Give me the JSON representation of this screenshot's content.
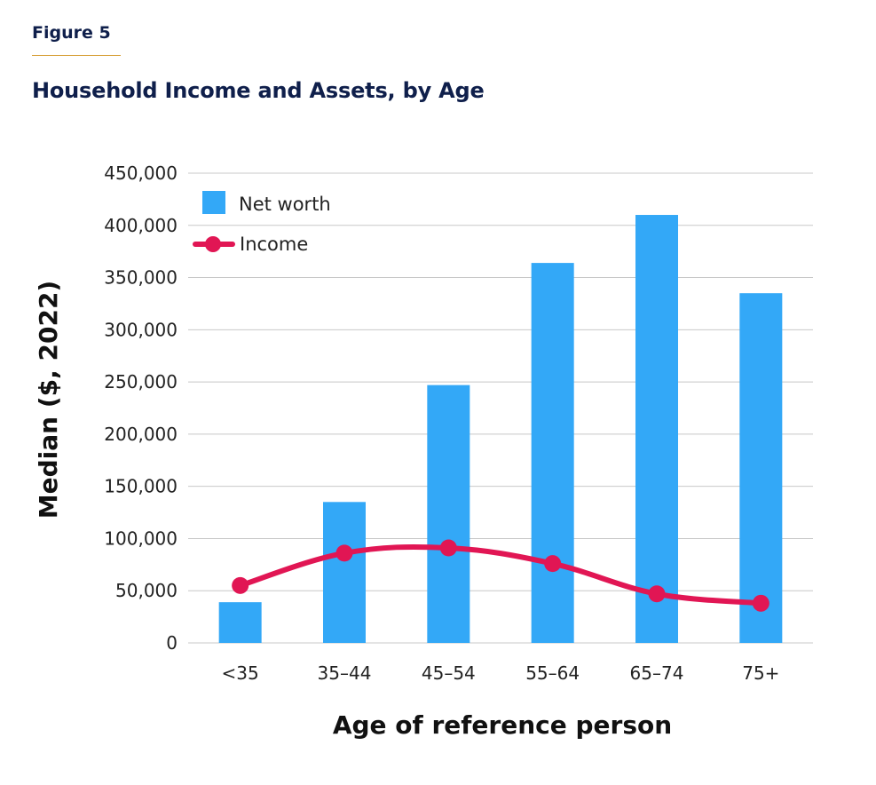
{
  "figure_label": "Figure 5",
  "title": "Household Income and Assets, by Age",
  "colors": {
    "bar": "#33a8f7",
    "line": "#e11654",
    "grid": "#c8c8c8",
    "heading": "#0f1f4b",
    "rule": "#d9a441"
  },
  "chart_data": {
    "type": "bar",
    "categories": [
      "<35",
      "35–44",
      "45–54",
      "55–64",
      "65–74",
      "75+"
    ],
    "series": [
      {
        "name": "Net worth",
        "type": "bar",
        "values": [
          39000,
          135000,
          247000,
          364000,
          410000,
          335000
        ]
      },
      {
        "name": "Income",
        "type": "line",
        "values": [
          55000,
          86000,
          91000,
          76000,
          47000,
          38000
        ]
      }
    ],
    "xlabel": "Age of reference person",
    "ylabel": "Median ($, 2022)",
    "ylim": [
      0,
      450000
    ],
    "yticks": [
      {
        "value": 0,
        "label": "0"
      },
      {
        "value": 50000,
        "label": "50,000"
      },
      {
        "value": 100000,
        "label": "100,000"
      },
      {
        "value": 150000,
        "label": "150,000"
      },
      {
        "value": 200000,
        "label": "200,000"
      },
      {
        "value": 250000,
        "label": "250,000"
      },
      {
        "value": 300000,
        "label": "300,000"
      },
      {
        "value": 350000,
        "label": "350,000"
      },
      {
        "value": 400000,
        "label": "400,000"
      },
      {
        "value": 450000,
        "label": "450,000"
      }
    ],
    "grid": true,
    "legend_position": "top-left"
  }
}
